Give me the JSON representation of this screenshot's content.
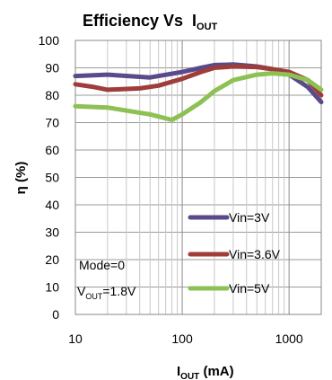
{
  "chart_data": {
    "type": "line",
    "title": "Efficiency Vs",
    "title_var": {
      "main": "I",
      "sub": "OUT"
    },
    "ylabel": "η (%)",
    "xlabel": {
      "main": "I",
      "sub": "OUT",
      "suffix": " (mA)"
    },
    "x_scale": "log",
    "xlim": [
      10,
      2000
    ],
    "ylim": [
      0,
      100
    ],
    "y_ticks": [
      0,
      10,
      20,
      30,
      40,
      50,
      60,
      70,
      80,
      90,
      100
    ],
    "x_ticks": [
      10,
      100,
      1000
    ],
    "x_tick_labels": [
      "10",
      "100",
      "1000"
    ],
    "grid": true,
    "legend_position": "right, over plot",
    "annotation": {
      "line1": "Mode=0",
      "line2": {
        "main": "V",
        "sub": "OUT",
        "suffix": "=1.8V"
      }
    },
    "series": [
      {
        "name": "Vin=3V",
        "color": "#5b4a8b",
        "x": [
          10,
          20,
          50,
          100,
          150,
          200,
          300,
          500,
          700,
          1000,
          1500,
          2000
        ],
        "y": [
          87,
          87.5,
          86.5,
          88.5,
          90,
          91,
          91.2,
          90.5,
          89.5,
          87.5,
          83,
          77.5
        ]
      },
      {
        "name": "Vin=3.6V",
        "color": "#9e3d3a",
        "x": [
          10,
          15,
          20,
          40,
          60,
          100,
          150,
          200,
          300,
          500,
          700,
          1000,
          1500,
          2000
        ],
        "y": [
          84,
          83,
          82,
          82.5,
          83.5,
          86,
          88.5,
          90,
          90.5,
          90.3,
          89.5,
          88.5,
          85.5,
          80
        ]
      },
      {
        "name": "Vin=5V",
        "color": "#8dc153",
        "x": [
          10,
          20,
          50,
          80,
          100,
          150,
          200,
          300,
          500,
          700,
          1000,
          1500,
          2000
        ],
        "y": [
          76,
          75.5,
          73,
          71,
          73,
          77.5,
          81.5,
          85.5,
          87.5,
          88,
          87.5,
          85.5,
          82
        ]
      }
    ]
  }
}
